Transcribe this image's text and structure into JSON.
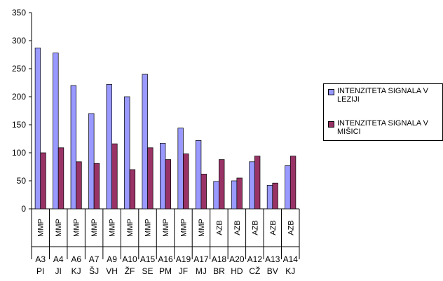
{
  "chart_data": {
    "type": "bar",
    "categories": [
      {
        "group": "MMP",
        "code": "A3",
        "initials": "PI"
      },
      {
        "group": "MMP",
        "code": "A4",
        "initials": "JI"
      },
      {
        "group": "MMP",
        "code": "A6",
        "initials": "KJ"
      },
      {
        "group": "MMP",
        "code": "A7",
        "initials": "ŠJ"
      },
      {
        "group": "MMP",
        "code": "A9",
        "initials": "VH"
      },
      {
        "group": "MMP",
        "code": "A10",
        "initials": "ŽF"
      },
      {
        "group": "MMP",
        "code": "A15",
        "initials": "SE"
      },
      {
        "group": "MMP",
        "code": "A16",
        "initials": "PM"
      },
      {
        "group": "MMP",
        "code": "A19",
        "initials": "JF"
      },
      {
        "group": "MMP",
        "code": "A17",
        "initials": "MJ"
      },
      {
        "group": "AZB",
        "code": "A18",
        "initials": "BR"
      },
      {
        "group": "AZB",
        "code": "A20",
        "initials": "HD"
      },
      {
        "group": "AZB",
        "code": "A12",
        "initials": "CŽ"
      },
      {
        "group": "AZB",
        "code": "A13",
        "initials": "BV"
      },
      {
        "group": "AZB",
        "code": "A14",
        "initials": "KJ"
      }
    ],
    "series": [
      {
        "name": "INTENZITETA SIGNALA V LEZIJI",
        "color": "#9999ff",
        "values": [
          287,
          278,
          220,
          170,
          222,
          200,
          240,
          117,
          144,
          122,
          49,
          50,
          84,
          42,
          77
        ]
      },
      {
        "name": "INTENZITETA SIGNALA V MIŠICI",
        "color": "#993366",
        "values": [
          100,
          109,
          84,
          81,
          116,
          70,
          109,
          88,
          98,
          62,
          88,
          55,
          94,
          46,
          94
        ]
      }
    ],
    "ylim": [
      0,
      350
    ],
    "yticks": [
      0,
      50,
      100,
      150,
      200,
      250,
      300,
      350
    ],
    "grid": false,
    "legend_position": "right"
  }
}
